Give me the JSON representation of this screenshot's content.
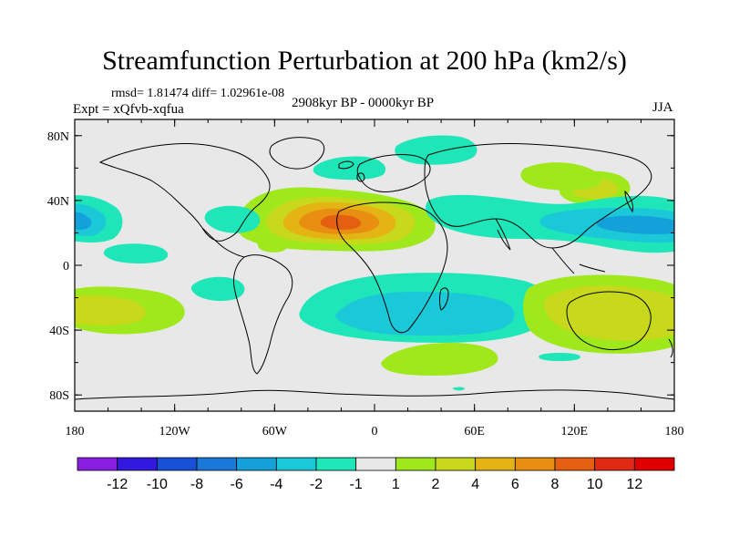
{
  "chart_data": {
    "type": "filled-contour-map",
    "title": "Streamfunction Perturbation at 200 hPa (km2/s)",
    "stats_text": "rmsd= 1.81474 diff= 1.02961e-08",
    "left_label": "Expt = xQfvb-xqfua",
    "center_label": "2908kyr BP - 0000kyr BP",
    "right_label": "JJA",
    "x_axis": {
      "range": [
        -180,
        180
      ],
      "tick_labels": [
        "180",
        "120W",
        "60W",
        "0",
        "60E",
        "120E",
        "180"
      ]
    },
    "y_axis": {
      "range": [
        -90,
        90
      ],
      "tick_labels": [
        "80N",
        "40N",
        "0",
        "40S",
        "80S"
      ]
    },
    "colorbar": {
      "labels": [
        "-12",
        "-10",
        "-8",
        "-6",
        "-4",
        "-2",
        "-1",
        "1",
        "2",
        "4",
        "6",
        "8",
        "10",
        "12"
      ],
      "colors": [
        "#8a1ee0",
        "#3318e0",
        "#1850d6",
        "#1a78d8",
        "#14a0d8",
        "#1ac8d8",
        "#1ee6b8",
        "#e8e8e8",
        "#9ee81c",
        "#c8d81a",
        "#e4b414",
        "#e88e10",
        "#e46010",
        "#e02a14",
        "#e00000"
      ]
    },
    "features": [
      {
        "name": "positive-center-atlantic-africa",
        "lon": -10,
        "lat": 28,
        "peak": 8
      },
      {
        "name": "negative-west-pacific-asia",
        "lon": 150,
        "lat": 30,
        "peak": -6
      },
      {
        "name": "negative-southern-atlantic-indian",
        "lon": 20,
        "lat": -30,
        "peak": -4
      },
      {
        "name": "negative-east-pacific",
        "lon": -170,
        "lat": 35,
        "peak": -4
      },
      {
        "name": "positive-australia",
        "lon": 140,
        "lat": -25,
        "peak": 4
      },
      {
        "name": "positive-south-pacific",
        "lon": -160,
        "lat": -20,
        "peak": 2
      }
    ]
  }
}
